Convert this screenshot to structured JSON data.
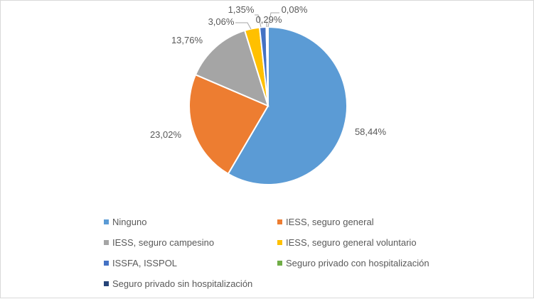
{
  "chart_data": {
    "type": "pie",
    "title": "",
    "slices": [
      {
        "name": "Ninguno",
        "value": 58.44,
        "label": "58,44%",
        "color": "#5B9BD5"
      },
      {
        "name": "IESS, seguro general",
        "value": 23.02,
        "label": "23,02%",
        "color": "#ED7D31"
      },
      {
        "name": "IESS, seguro campesino",
        "value": 13.76,
        "label": "13,76%",
        "color": "#A5A5A5"
      },
      {
        "name": "IESS, seguro general voluntario",
        "value": 3.06,
        "label": "3,06%",
        "color": "#FFC000"
      },
      {
        "name": "ISSFA, ISSPOL",
        "value": 1.35,
        "label": "1,35%",
        "color": "#4472C4"
      },
      {
        "name": "Seguro privado con hospitalización",
        "value": 0.29,
        "label": "0,29%",
        "color": "#70AD47"
      },
      {
        "name": "Seguro privado sin hospitalización",
        "value": 0.08,
        "label": "0,08%",
        "color": "#264478"
      }
    ],
    "legend_position": "bottom"
  }
}
